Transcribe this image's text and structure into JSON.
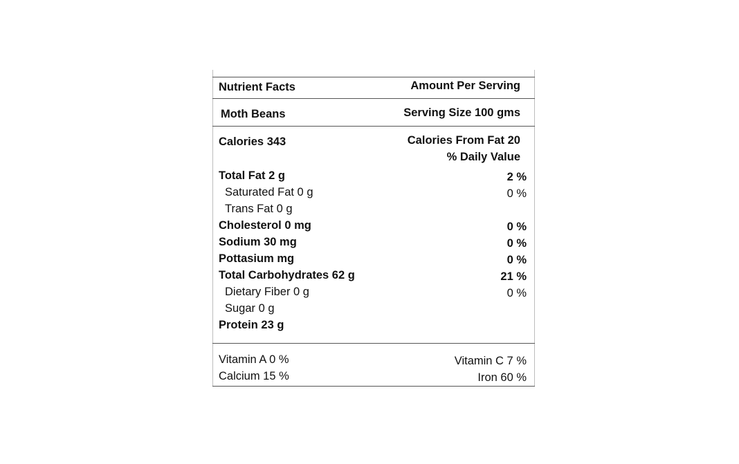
{
  "header": {
    "title": "Nutrient Facts",
    "amount_label": "Amount Per Serving",
    "product_name": "Moth Beans",
    "serving_size": "Serving Size 100 gms"
  },
  "calories": {
    "calories": "Calories 343",
    "from_fat": "Calories From Fat 20",
    "daily_value_label": "% Daily Value"
  },
  "nutrients": [
    {
      "label": "Total Fat 2 g",
      "dv": "2 %"
    },
    {
      "label": "Saturated Fat 0 g",
      "dv": "0 %"
    },
    {
      "label": "Trans Fat 0 g",
      "dv": ""
    },
    {
      "label": "Cholesterol 0 mg",
      "dv": "0 %"
    },
    {
      "label": "Sodium 30 mg",
      "dv": "0 %"
    },
    {
      "label": "Pottasium mg",
      "dv": "0 %"
    },
    {
      "label": "Total Carbohydrates 62 g",
      "dv": "21 %"
    },
    {
      "label": "Dietary Fiber 0 g",
      "dv": "0 %"
    },
    {
      "label": "Sugar 0 g",
      "dv": ""
    },
    {
      "label": "Protein 23 g",
      "dv": ""
    }
  ],
  "vitamins": {
    "vitamin_a": "Vitamin A 0 %",
    "vitamin_c": "Vitamin C 7 %",
    "calcium": "Calcium 15 %",
    "iron": "Iron 60 %"
  }
}
